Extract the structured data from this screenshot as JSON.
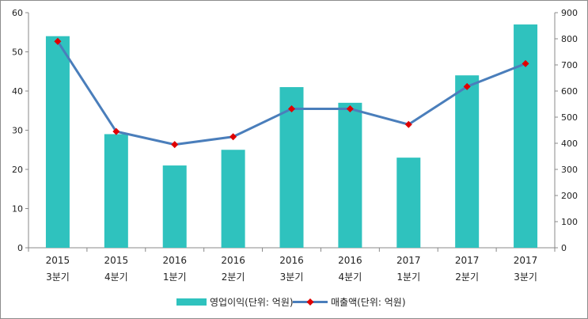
{
  "chart_data": {
    "type": "bar",
    "categories": [
      [
        "2015",
        "3분기"
      ],
      [
        "2015",
        "4분기"
      ],
      [
        "2016",
        "1분기"
      ],
      [
        "2016",
        "2분기"
      ],
      [
        "2016",
        "3분기"
      ],
      [
        "2016",
        "4분기"
      ],
      [
        "2017",
        "1분기"
      ],
      [
        "2017",
        "2분기"
      ],
      [
        "2017",
        "3분기"
      ]
    ],
    "series": [
      {
        "name": "영업이익(단위: 억원)",
        "type": "bar",
        "axis": "left",
        "color": "#2fc2be",
        "values": [
          54,
          29,
          21,
          25,
          41,
          37,
          23,
          44,
          57
        ]
      },
      {
        "name": "매출액(단위: 억원)",
        "type": "line",
        "axis": "right",
        "color": "#4a7ebb",
        "marker_color": "#e00000",
        "values": [
          790,
          445,
          395,
          425,
          532,
          532,
          472,
          617,
          705
        ]
      }
    ],
    "y_left": {
      "range": [
        0,
        60
      ],
      "ticks": [
        "0",
        "10",
        "20",
        "30",
        "40",
        "50",
        "60"
      ]
    },
    "y_right": {
      "range": [
        0,
        900
      ],
      "ticks": [
        "0",
        "100",
        "200",
        "300",
        "400",
        "500",
        "600",
        "700",
        "800",
        "900"
      ]
    },
    "grid": false,
    "legend_position": "bottom"
  }
}
